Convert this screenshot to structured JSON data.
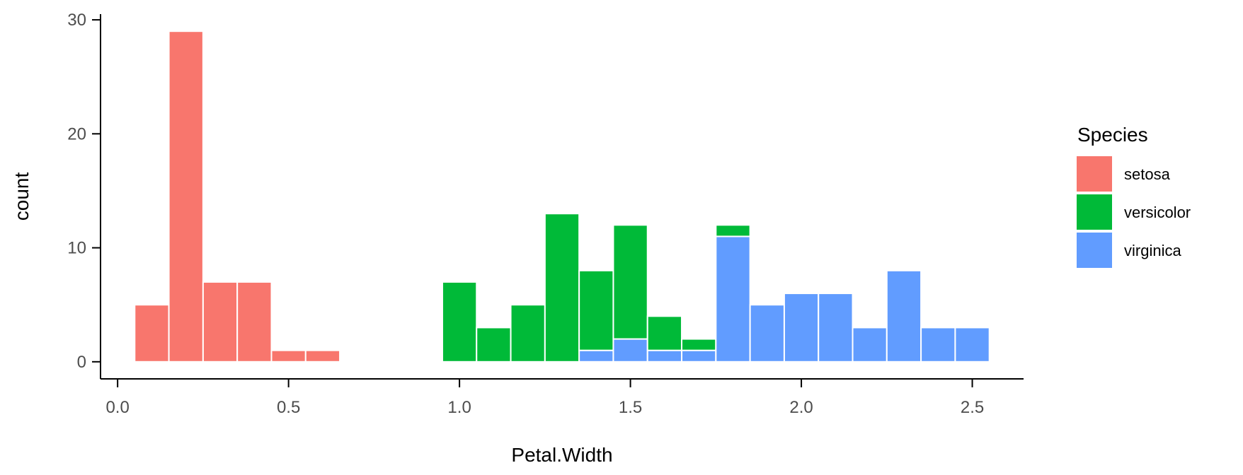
{
  "chart_data": {
    "type": "bar",
    "subtype": "stacked-histogram",
    "xlabel": "Petal.Width",
    "ylabel": "count",
    "xlim": [
      -0.05,
      2.65
    ],
    "ylim": [
      -1.5,
      30.5
    ],
    "x_ticks": [
      0.0,
      0.5,
      1.0,
      1.5,
      2.0,
      2.5
    ],
    "x_tick_labels": [
      "0.0",
      "0.5",
      "1.0",
      "1.5",
      "2.0",
      "2.5"
    ],
    "y_ticks": [
      0,
      10,
      20,
      30
    ],
    "y_tick_labels": [
      "0",
      "10",
      "20",
      "30"
    ],
    "bin_width": 0.1,
    "bins": [
      0.1,
      0.2,
      0.3,
      0.4,
      0.5,
      0.6,
      0.7,
      0.8,
      0.9,
      1.0,
      1.1,
      1.2,
      1.3,
      1.4,
      1.5,
      1.6,
      1.7,
      1.8,
      1.9,
      2.0,
      2.1,
      2.2,
      2.3,
      2.4,
      2.5
    ],
    "series": [
      {
        "name": "setosa",
        "color": "#F8766D",
        "values": [
          5,
          29,
          7,
          7,
          1,
          1,
          0,
          0,
          0,
          0,
          0,
          0,
          0,
          0,
          0,
          0,
          0,
          0,
          0,
          0,
          0,
          0,
          0,
          0,
          0
        ]
      },
      {
        "name": "versicolor",
        "color": "#00BA38",
        "values": [
          0,
          0,
          0,
          0,
          0,
          0,
          0,
          0,
          0,
          7,
          3,
          5,
          13,
          7,
          10,
          3,
          1,
          1,
          0,
          0,
          0,
          0,
          0,
          0,
          0
        ]
      },
      {
        "name": "virginica",
        "color": "#619CFF",
        "values": [
          0,
          0,
          0,
          0,
          0,
          0,
          0,
          0,
          0,
          0,
          0,
          0,
          0,
          1,
          2,
          1,
          1,
          11,
          5,
          6,
          6,
          3,
          8,
          3,
          3
        ]
      }
    ],
    "stack_order": [
      "virginica",
      "versicolor",
      "setosa"
    ],
    "legend": {
      "title": "Species",
      "position": "right"
    },
    "grid": false
  }
}
